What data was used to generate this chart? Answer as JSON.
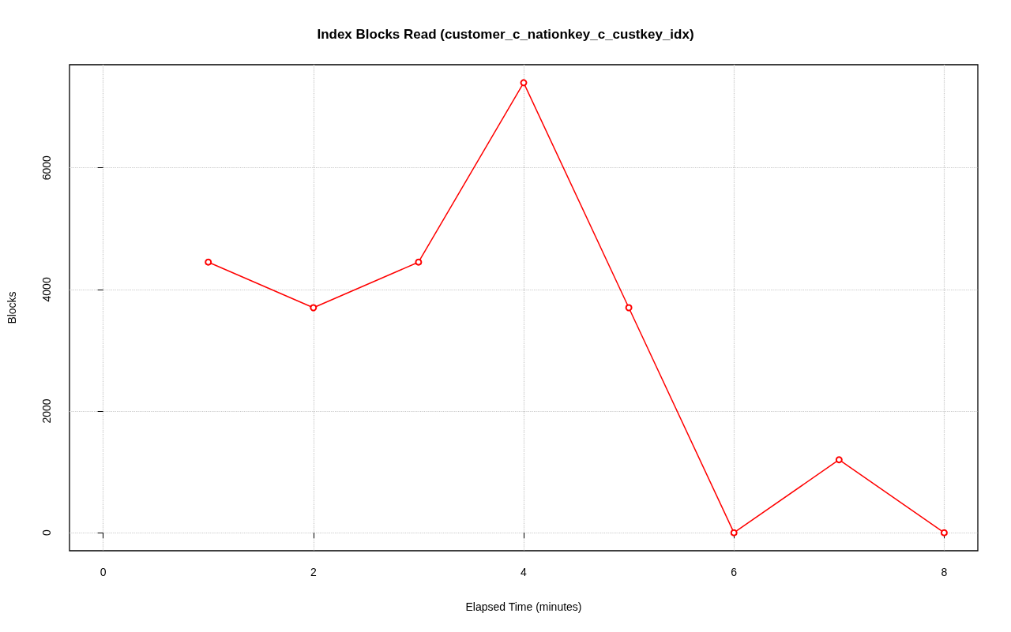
{
  "chart_data": {
    "type": "line",
    "title": "Index Blocks Read (customer_c_nationkey_c_custkey_idx)",
    "xlabel": "Elapsed Time (minutes)",
    "ylabel": "Blocks",
    "x": [
      1,
      2,
      3,
      4,
      5,
      6,
      7,
      8
    ],
    "series": [
      {
        "color": "#ff0000",
        "values": [
          4450,
          3700,
          4450,
          7400,
          3700,
          0,
          1200,
          0
        ]
      }
    ],
    "xlim": [
      -0.32,
      8.32
    ],
    "xticks": [
      0,
      2,
      4,
      6,
      8
    ],
    "ylim": [
      -296,
      7696
    ],
    "yticks": [
      0,
      2000,
      4000,
      6000
    ],
    "grid": true,
    "marker": "circle",
    "line_style": "solid"
  }
}
